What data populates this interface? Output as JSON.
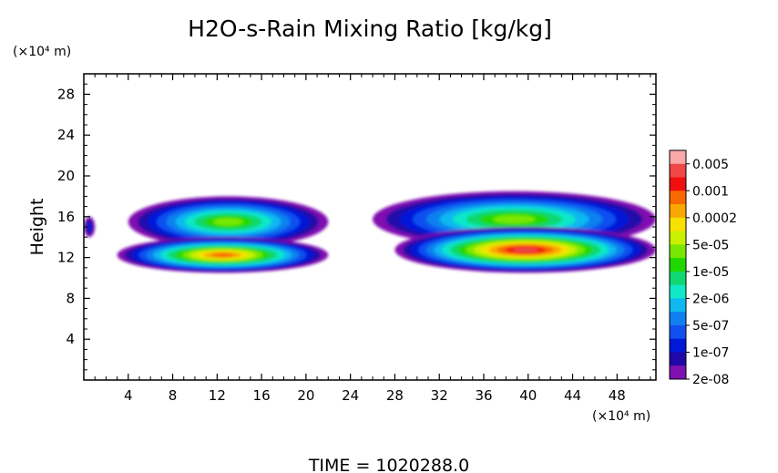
{
  "chart_data": {
    "type": "heatmap",
    "title": "H2O-s-Rain Mixing Ratio [kg/kg]",
    "xlabel": "(×10⁴ m)",
    "ylabel": "Height",
    "y_unit_label": "(×10⁴ m)",
    "x_ticks": [
      "4",
      "8",
      "12",
      "16",
      "20",
      "24",
      "28",
      "32",
      "36",
      "40",
      "44",
      "48"
    ],
    "x_tick_values": [
      4,
      8,
      12,
      16,
      20,
      24,
      28,
      32,
      36,
      40,
      44,
      48
    ],
    "y_ticks": [
      "4",
      "8",
      "12",
      "16",
      "20",
      "24",
      "28"
    ],
    "y_tick_values": [
      4,
      8,
      12,
      16,
      20,
      24,
      28
    ],
    "xlim": [
      0,
      51.5
    ],
    "ylim": [
      0,
      30
    ],
    "colorbar": {
      "labels": [
        "0.005",
        "0.001",
        "0.0002",
        "5e-05",
        "1e-05",
        "2e-06",
        "5e-07",
        "1e-07",
        "2e-08"
      ],
      "colors": [
        "#f8a8a8",
        "#f04848",
        "#f01010",
        "#f86800",
        "#f8a800",
        "#f8e000",
        "#c8f000",
        "#78e800",
        "#20d800",
        "#10d870",
        "#10e8c8",
        "#10b8f0",
        "#1080f0",
        "#1050f0",
        "#0018d8",
        "#2008a8",
        "#8010b0"
      ]
    },
    "footer": "TIME = 1020288.0",
    "regions": [
      {
        "name": "left-edge",
        "x": [
          0,
          1
        ],
        "y": [
          14,
          16
        ],
        "peak_level": 14
      },
      {
        "name": "west-cloud-upper",
        "x": [
          4,
          22
        ],
        "y": [
          13,
          18
        ],
        "peak_level": 7
      },
      {
        "name": "west-cloud-lower",
        "x": [
          3,
          22
        ],
        "y": [
          10.5,
          14
        ],
        "peak_level": 3
      },
      {
        "name": "east-cloud-upper",
        "x": [
          26,
          51.5
        ],
        "y": [
          13,
          18.5
        ],
        "peak_level": 7
      },
      {
        "name": "east-cloud-lower",
        "x": [
          28,
          51.5
        ],
        "y": [
          10.5,
          15
        ],
        "peak_level": 1
      }
    ]
  }
}
